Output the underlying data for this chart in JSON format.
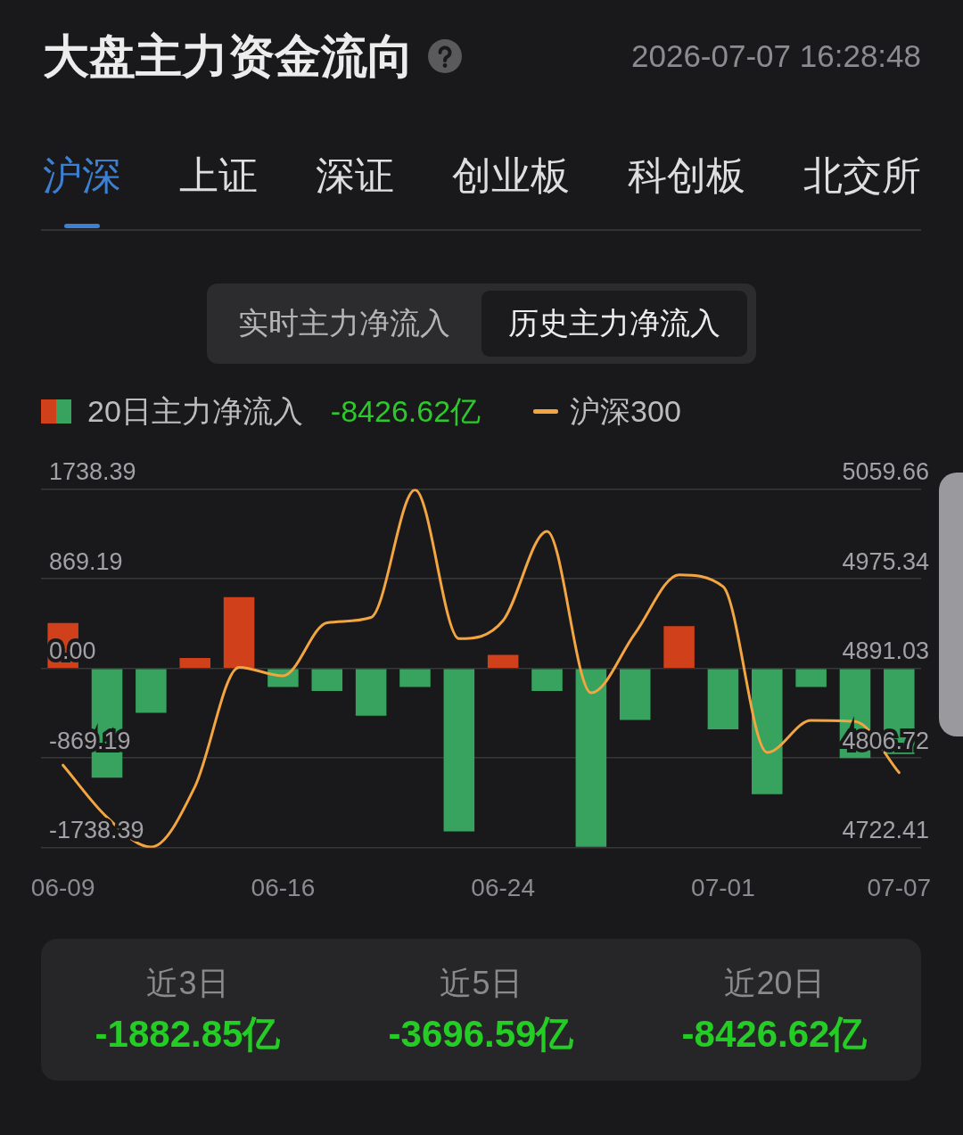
{
  "chart_data": {
    "type": "bar",
    "title": "大盘主力资金流向",
    "subtitle": "2026-07-07 16:28:48",
    "annotations": [
      "沪深",
      "上证",
      "深证",
      "创业板",
      "科创板",
      "北交所",
      "实时主力净流入",
      "历史主力净流入",
      "-8426.62亿",
      "近3日",
      "-1882.85亿",
      "近5日",
      "-3696.59亿",
      "近20日",
      "-8426.62亿"
    ],
    "categories": [
      "06-09",
      null,
      null,
      null,
      null,
      "06-16",
      null,
      null,
      null,
      null,
      "06-24",
      null,
      null,
      null,
      null,
      "07-01",
      null,
      null,
      null,
      "07-07"
    ],
    "series": [
      {
        "name": "20日主力净流入",
        "colors": [
          "#d0401a",
          "#37a35e",
          "#37a35e",
          "#d0401a",
          "#d0401a",
          "#37a35e",
          "#37a35e",
          "#37a35e",
          "#37a35e",
          "#37a35e",
          "#d0401a",
          "#37a35e",
          "#37a35e",
          "#37a35e",
          "#d0401a",
          "#37a35e",
          "#37a35e",
          "#37a35e",
          "#37a35e",
          "#37a35e"
        ],
        "values": [
          440,
          -1060,
          -430,
          100,
          690,
          -180,
          -220,
          -460,
          -180,
          -1580,
          130,
          -220,
          -1730,
          -500,
          410,
          -590,
          -1220,
          -180,
          -870,
          -830
        ]
      },
      {
        "name": "沪深300",
        "type": "line",
        "axis": "y2",
        "color": "#f2a541",
        "values": [
          4800,
          4751,
          4723,
          4780,
          4892,
          4884,
          4934,
          4939,
          5059,
          4919,
          4936,
          5020,
          4868,
          4924,
          4979,
          4968,
          4812,
          4842,
          4841,
          4793
        ]
      }
    ],
    "ylim": [
      -1738.39,
      1738.39
    ],
    "yticks": [
      -1738.39,
      -869.19,
      {
        "value": 0,
        "label": "0.00"
      },
      869.19,
      1738.39
    ],
    "y2lim": [
      4722.41,
      5059.66
    ],
    "y2ticks": [
      4722.41,
      4806.72,
      4891.03,
      4975.34,
      5059.66
    ],
    "grid": "y",
    "legend": "top left",
    "marker": "none"
  }
}
